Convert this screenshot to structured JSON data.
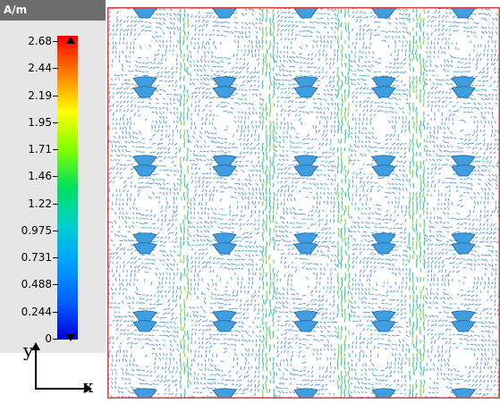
{
  "legend": {
    "unit": "A/m",
    "ticks": [
      "2.68",
      "2.44",
      "2.19",
      "1.95",
      "1.71",
      "1.46",
      "1.22",
      "0.975",
      "0.731",
      "0.488",
      "0.244",
      "0"
    ]
  },
  "axes": {
    "x_label": "x",
    "y_label": "y"
  },
  "colors": {
    "frame": "#e23a3a",
    "arrow_low": "#3f86d6",
    "arrow_mid": "#27c6a3",
    "arrow_high": "#7ad64a",
    "cone": "#3f9ee0"
  }
}
